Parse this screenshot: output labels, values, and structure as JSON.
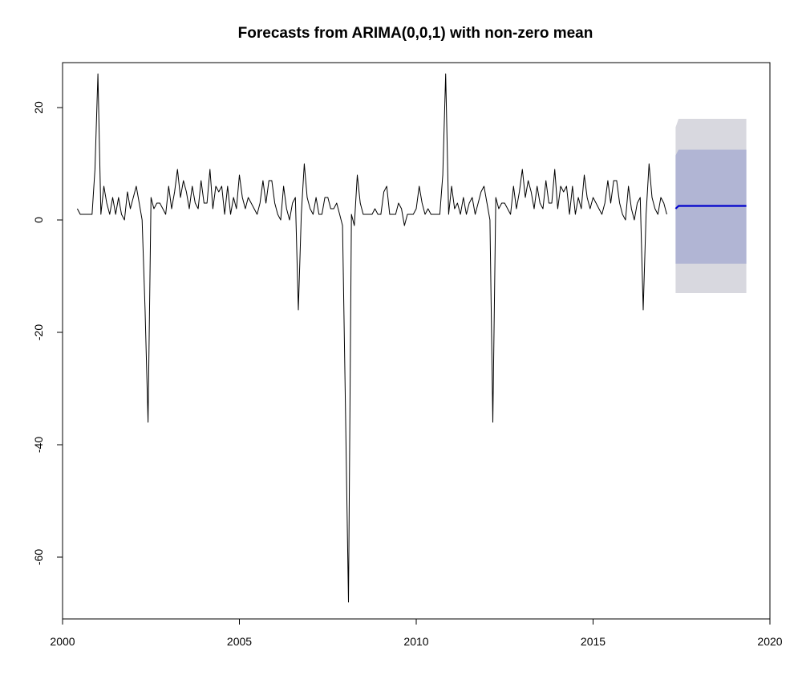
{
  "chart_data": {
    "type": "line",
    "title": "Forecasts from ARIMA(0,0,1) with non-zero mean",
    "xlabel": "",
    "ylabel": "",
    "xlim": [
      2000,
      2020
    ],
    "ylim": [
      -71,
      28
    ],
    "x_ticks": [
      2000,
      2005,
      2010,
      2015,
      2020
    ],
    "y_ticks": [
      -60,
      -40,
      -20,
      0,
      20
    ],
    "grid": false,
    "legend": "none",
    "series": [
      {
        "role": "observed",
        "color": "#000000",
        "start": 2000.417,
        "step": 0.08333,
        "values": [
          2,
          1,
          1,
          1,
          1,
          1,
          9,
          26,
          1,
          6,
          3,
          1,
          4,
          1,
          4,
          1,
          0,
          5,
          2,
          4,
          6,
          3,
          0,
          -16,
          -36,
          4,
          2,
          3,
          3,
          2,
          1,
          6,
          2,
          5,
          9,
          4,
          7,
          5,
          2,
          6,
          3,
          2,
          7,
          3,
          3,
          9,
          2,
          6,
          5,
          6,
          1,
          6,
          1,
          4,
          2,
          8,
          4,
          2,
          4,
          3,
          2,
          1,
          3,
          7,
          3,
          7,
          7,
          3,
          1,
          0,
          6,
          2,
          0,
          3,
          4,
          -16,
          1,
          10,
          4,
          2,
          1,
          4,
          1,
          1,
          4,
          4,
          2,
          2,
          3,
          1,
          -1,
          -34,
          -68,
          1,
          -1,
          8,
          3,
          1,
          1,
          1,
          1,
          2,
          1,
          1,
          5,
          6,
          1,
          1,
          1,
          3,
          2,
          -1,
          1,
          1,
          1,
          2,
          6,
          3,
          1,
          2,
          1,
          1,
          1,
          1,
          8,
          26,
          1,
          6,
          2,
          3,
          1,
          4,
          1,
          3,
          4,
          1,
          3,
          5,
          6,
          3,
          0,
          -36,
          4,
          2,
          3,
          3,
          2,
          1,
          6,
          2,
          5,
          9,
          4,
          7,
          5,
          2,
          6,
          3,
          2,
          7,
          3,
          3,
          9,
          2,
          6,
          5,
          6,
          1,
          6,
          1,
          4,
          2,
          8,
          4,
          2,
          4,
          3,
          2,
          1,
          3,
          7,
          3,
          7,
          7,
          3,
          1,
          0,
          6,
          2,
          0,
          3,
          4,
          -16,
          1,
          10,
          4,
          2,
          1,
          4,
          3,
          1
        ]
      },
      {
        "role": "forecast",
        "color": "#0000CC",
        "start": 2017.333,
        "step": 0.08333,
        "values": [
          2.0,
          2.5,
          2.5,
          2.5,
          2.5,
          2.5,
          2.5,
          2.5,
          2.5,
          2.5,
          2.5,
          2.5,
          2.5,
          2.5,
          2.5,
          2.5,
          2.5,
          2.5,
          2.5,
          2.5,
          2.5,
          2.5,
          2.5,
          2.5,
          2.5
        ]
      }
    ],
    "intervals": [
      {
        "level": "95%",
        "color": "#D8D8DF",
        "start": 2017.333,
        "step": 0.08333,
        "lower": [
          -13,
          -13,
          -13,
          -13,
          -13,
          -13,
          -13,
          -13,
          -13,
          -13,
          -13,
          -13,
          -13,
          -13,
          -13,
          -13,
          -13,
          -13,
          -13,
          -13,
          -13,
          -13,
          -13,
          -13,
          -13
        ],
        "upper": [
          16.5,
          18,
          18,
          18,
          18,
          18,
          18,
          18,
          18,
          18,
          18,
          18,
          18,
          18,
          18,
          18,
          18,
          18,
          18,
          18,
          18,
          18,
          18,
          18,
          18
        ]
      },
      {
        "level": "80%",
        "color": "#B1B5D4",
        "start": 2017.333,
        "step": 0.08333,
        "lower": [
          -7.8,
          -7.8,
          -7.8,
          -7.8,
          -7.8,
          -7.8,
          -7.8,
          -7.8,
          -7.8,
          -7.8,
          -7.8,
          -7.8,
          -7.8,
          -7.8,
          -7.8,
          -7.8,
          -7.8,
          -7.8,
          -7.8,
          -7.8,
          -7.8,
          -7.8,
          -7.8,
          -7.8,
          -7.8
        ],
        "upper": [
          11.5,
          12.5,
          12.5,
          12.5,
          12.5,
          12.5,
          12.5,
          12.5,
          12.5,
          12.5,
          12.5,
          12.5,
          12.5,
          12.5,
          12.5,
          12.5,
          12.5,
          12.5,
          12.5,
          12.5,
          12.5,
          12.5,
          12.5,
          12.5,
          12.5
        ]
      }
    ]
  }
}
